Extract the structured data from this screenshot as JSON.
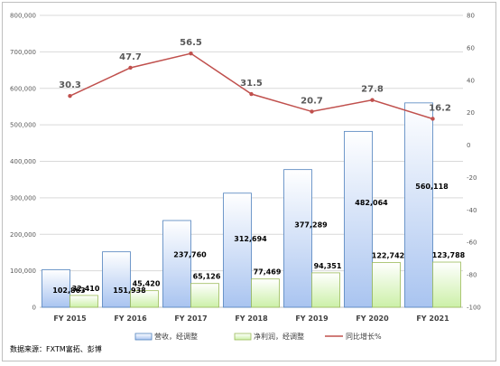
{
  "chart_data": {
    "type": "bar",
    "categories": [
      "FY 2015",
      "FY 2016",
      "FY 2017",
      "FY 2018",
      "FY 2019",
      "FY 2020",
      "FY 2021"
    ],
    "series": [
      {
        "name": "营收，经调整",
        "type": "bar",
        "axis": "left",
        "values": [
          102863,
          151938,
          237760,
          312694,
          377289,
          482064,
          560118
        ],
        "labels": [
          "102,863",
          "151,938",
          "237,760",
          "312,694",
          "377,289",
          "482,064",
          "560,118"
        ],
        "color": "#a9c4f0"
      },
      {
        "name": "净利润，经调整",
        "type": "bar",
        "axis": "left",
        "values": [
          32410,
          45420,
          65126,
          77469,
          94351,
          122742,
          123788
        ],
        "labels": [
          "32,410",
          "45,420",
          "65,126",
          "77,469",
          "94,351",
          "122,742",
          "123,788"
        ],
        "color": "#ccf0a8"
      },
      {
        "name": "同比增长%",
        "type": "line",
        "axis": "right",
        "values": [
          30.3,
          47.7,
          56.5,
          31.5,
          20.7,
          27.8,
          16.2
        ],
        "labels": [
          "30.3",
          "47.7",
          "56.5",
          "31.5",
          "20.7",
          "27.8",
          "16.2"
        ],
        "color": "#c0504d"
      }
    ],
    "y_left": {
      "min": 0,
      "max": 800000,
      "ticks": [
        "0",
        "100,000",
        "200,000",
        "300,000",
        "400,000",
        "500,000",
        "600,000",
        "700,000",
        "800,000"
      ]
    },
    "y_right": {
      "min": -100,
      "max": 80,
      "ticks": [
        "-100",
        "-80",
        "-60",
        "-40",
        "-20",
        "0",
        "20",
        "40",
        "60",
        "80"
      ]
    },
    "grid": true,
    "legend_position": "bottom",
    "title": "",
    "xlabel": "",
    "ylabel": ""
  },
  "source_text": "数据来源：FXTM富拓、彭博"
}
